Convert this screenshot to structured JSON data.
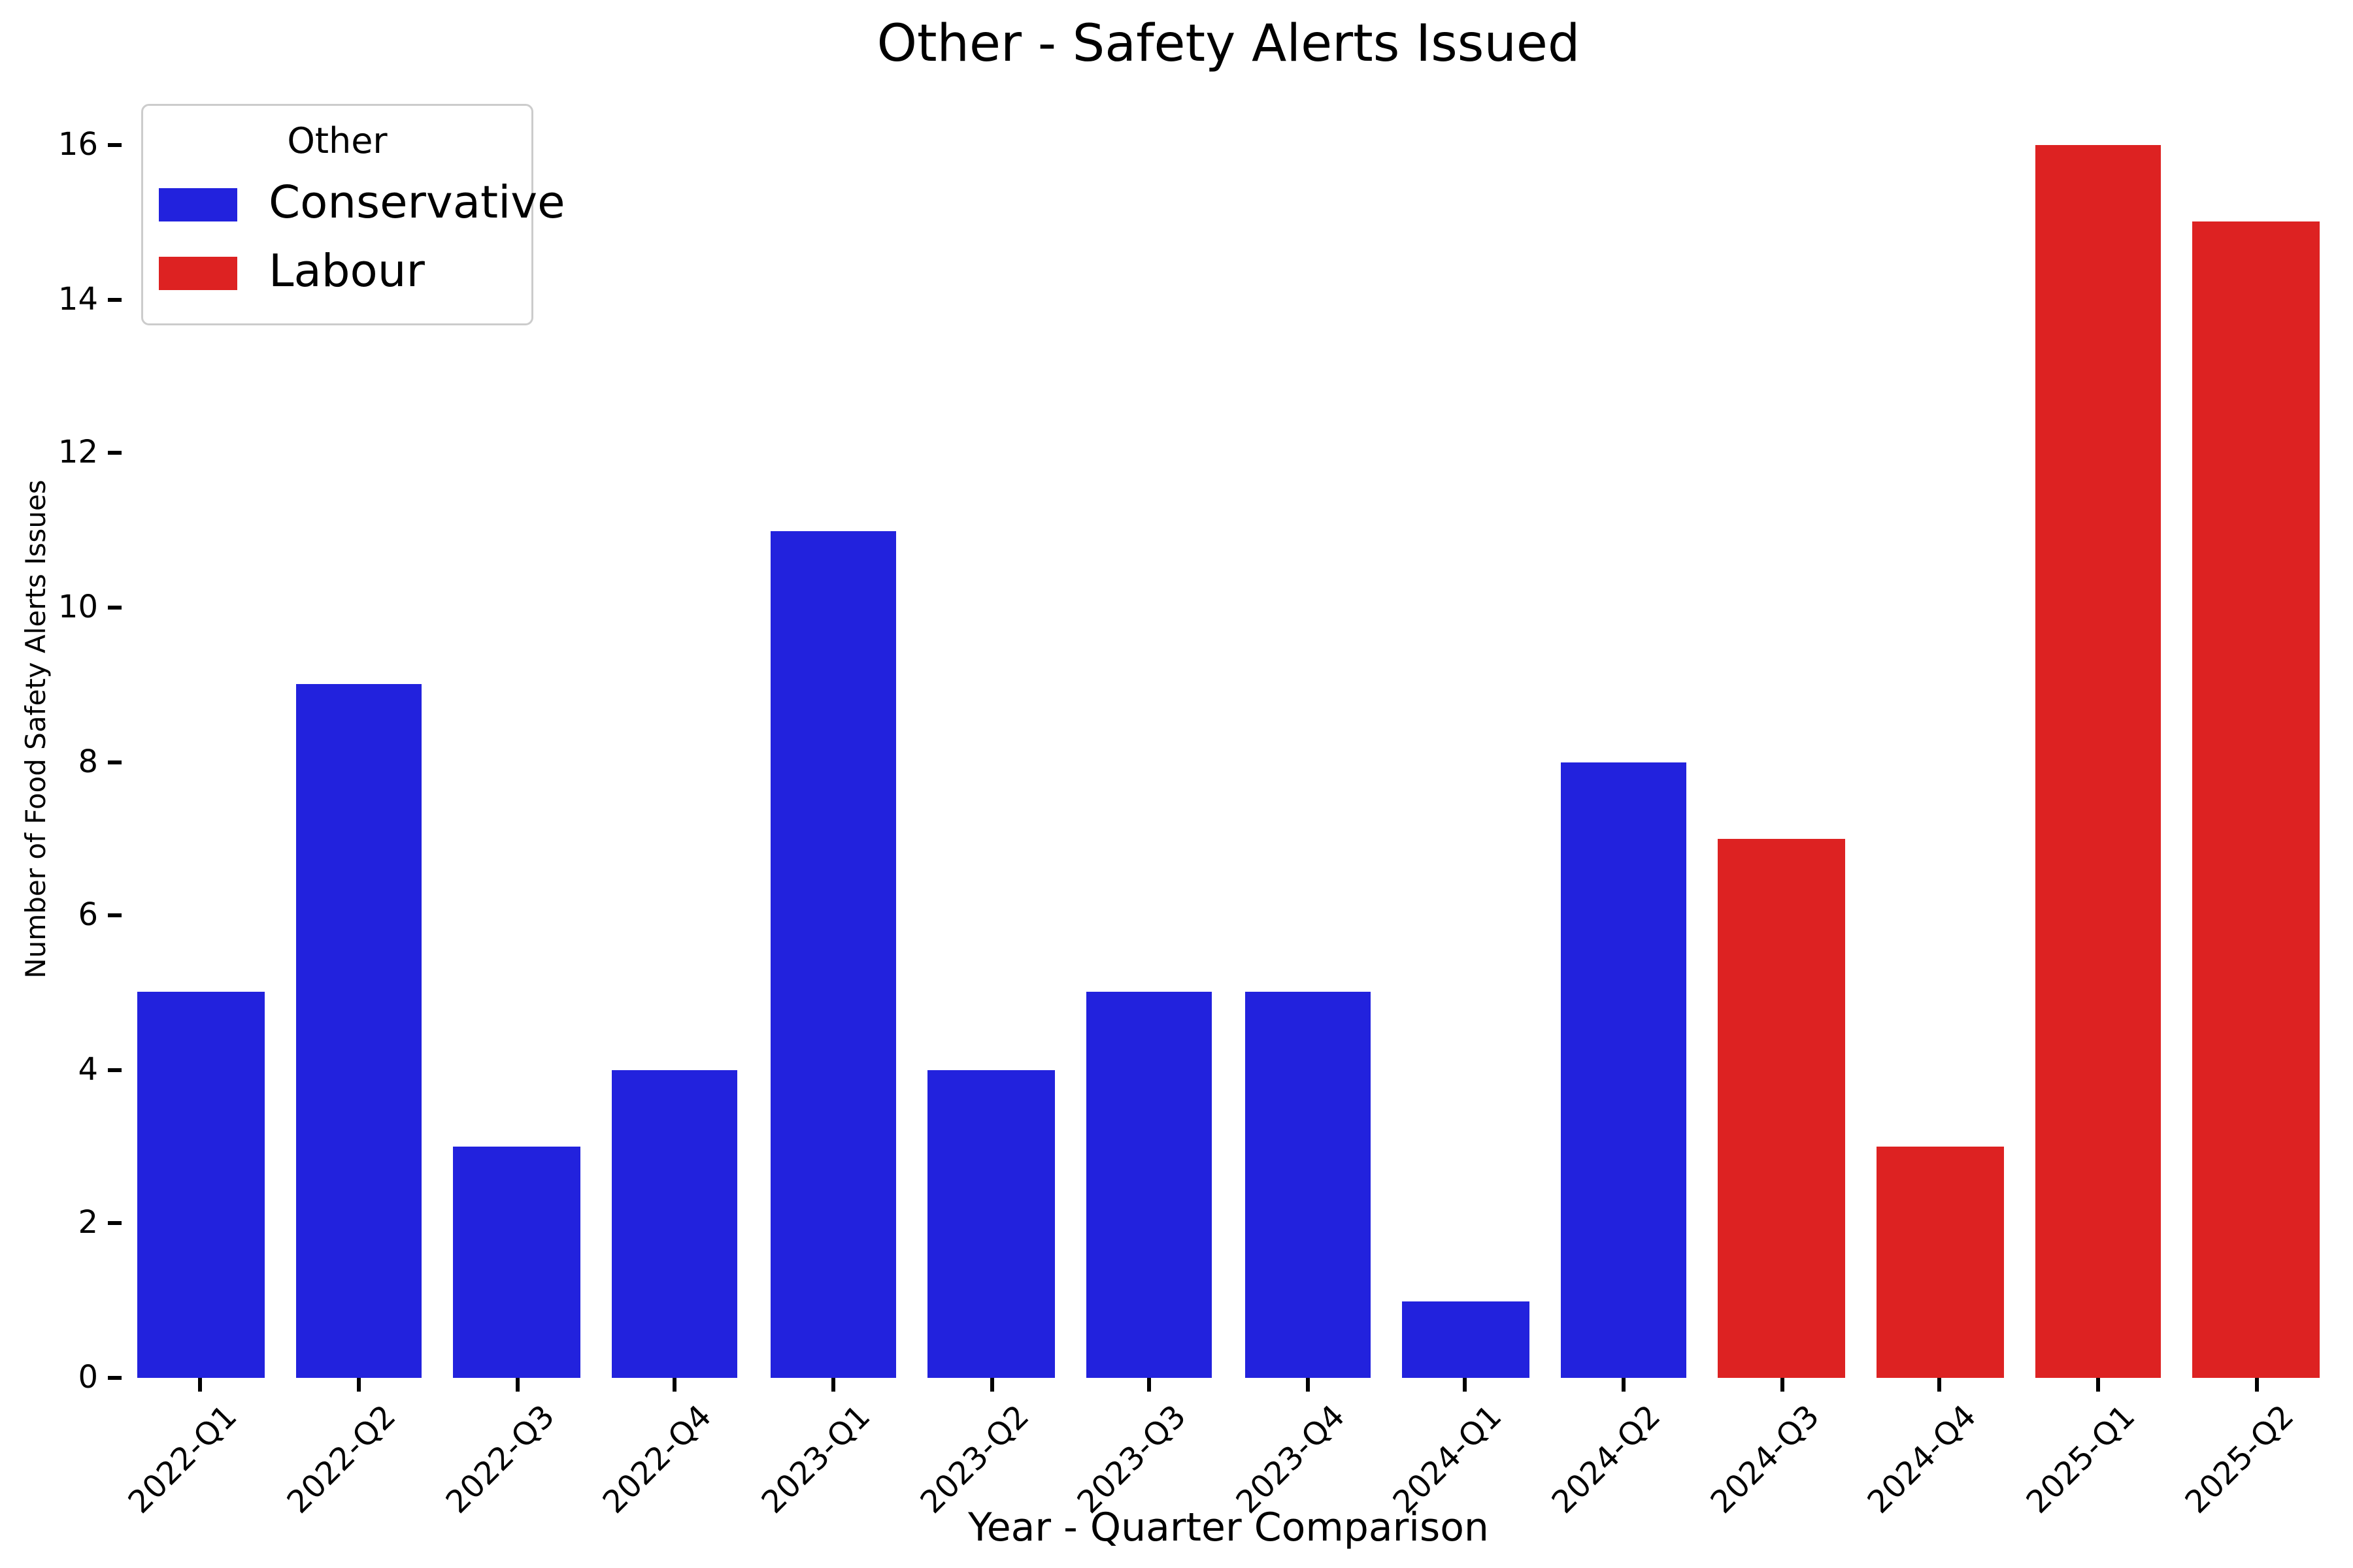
{
  "title": "Other - Safety Alerts Issued",
  "axes": {
    "x_label": "Year - Quarter Comparison",
    "y_label": "Number of Food Safety Alerts Issues"
  },
  "legend": {
    "title": "Other",
    "entries": [
      {
        "label": "Conservative",
        "color": "#2222dd"
      },
      {
        "label": "Labour",
        "color": "#dd2222"
      }
    ]
  },
  "chart_data": {
    "type": "bar",
    "title": "Other - Safety Alerts Issued",
    "xlabel": "Year - Quarter Comparison",
    "ylabel": "Number of Food Safety Alerts Issues",
    "categories": [
      "2022-Q1",
      "2022-Q2",
      "2022-Q3",
      "2022-Q4",
      "2023-Q1",
      "2023-Q2",
      "2023-Q3",
      "2023-Q4",
      "2024-Q1",
      "2024-Q2",
      "2024-Q3",
      "2024-Q4",
      "2025-Q1",
      "2025-Q2"
    ],
    "values": [
      5,
      9,
      3,
      4,
      11,
      4,
      5,
      5,
      1,
      8,
      7,
      3,
      16,
      15
    ],
    "bar_groups": [
      "Conservative",
      "Conservative",
      "Conservative",
      "Conservative",
      "Conservative",
      "Conservative",
      "Conservative",
      "Conservative",
      "Conservative",
      "Conservative",
      "Labour",
      "Labour",
      "Labour",
      "Labour"
    ],
    "series": [
      {
        "name": "Conservative",
        "color": "#2222dd",
        "categories": [
          "2022-Q1",
          "2022-Q2",
          "2022-Q3",
          "2022-Q4",
          "2023-Q1",
          "2023-Q2",
          "2023-Q3",
          "2023-Q4",
          "2024-Q1",
          "2024-Q2"
        ],
        "values": [
          5,
          9,
          3,
          4,
          11,
          4,
          5,
          5,
          1,
          8
        ]
      },
      {
        "name": "Labour",
        "color": "#dd2222",
        "categories": [
          "2024-Q3",
          "2024-Q4",
          "2025-Q1",
          "2025-Q2"
        ],
        "values": [
          7,
          3,
          16,
          15
        ]
      }
    ],
    "ylim": [
      0,
      16
    ],
    "yticks": [
      0,
      2,
      4,
      6,
      8,
      10,
      12,
      14,
      16
    ],
    "xtick_rotation": 45,
    "grid": false,
    "spines": false,
    "legend_position": "upper left",
    "background": "#ffffff"
  }
}
